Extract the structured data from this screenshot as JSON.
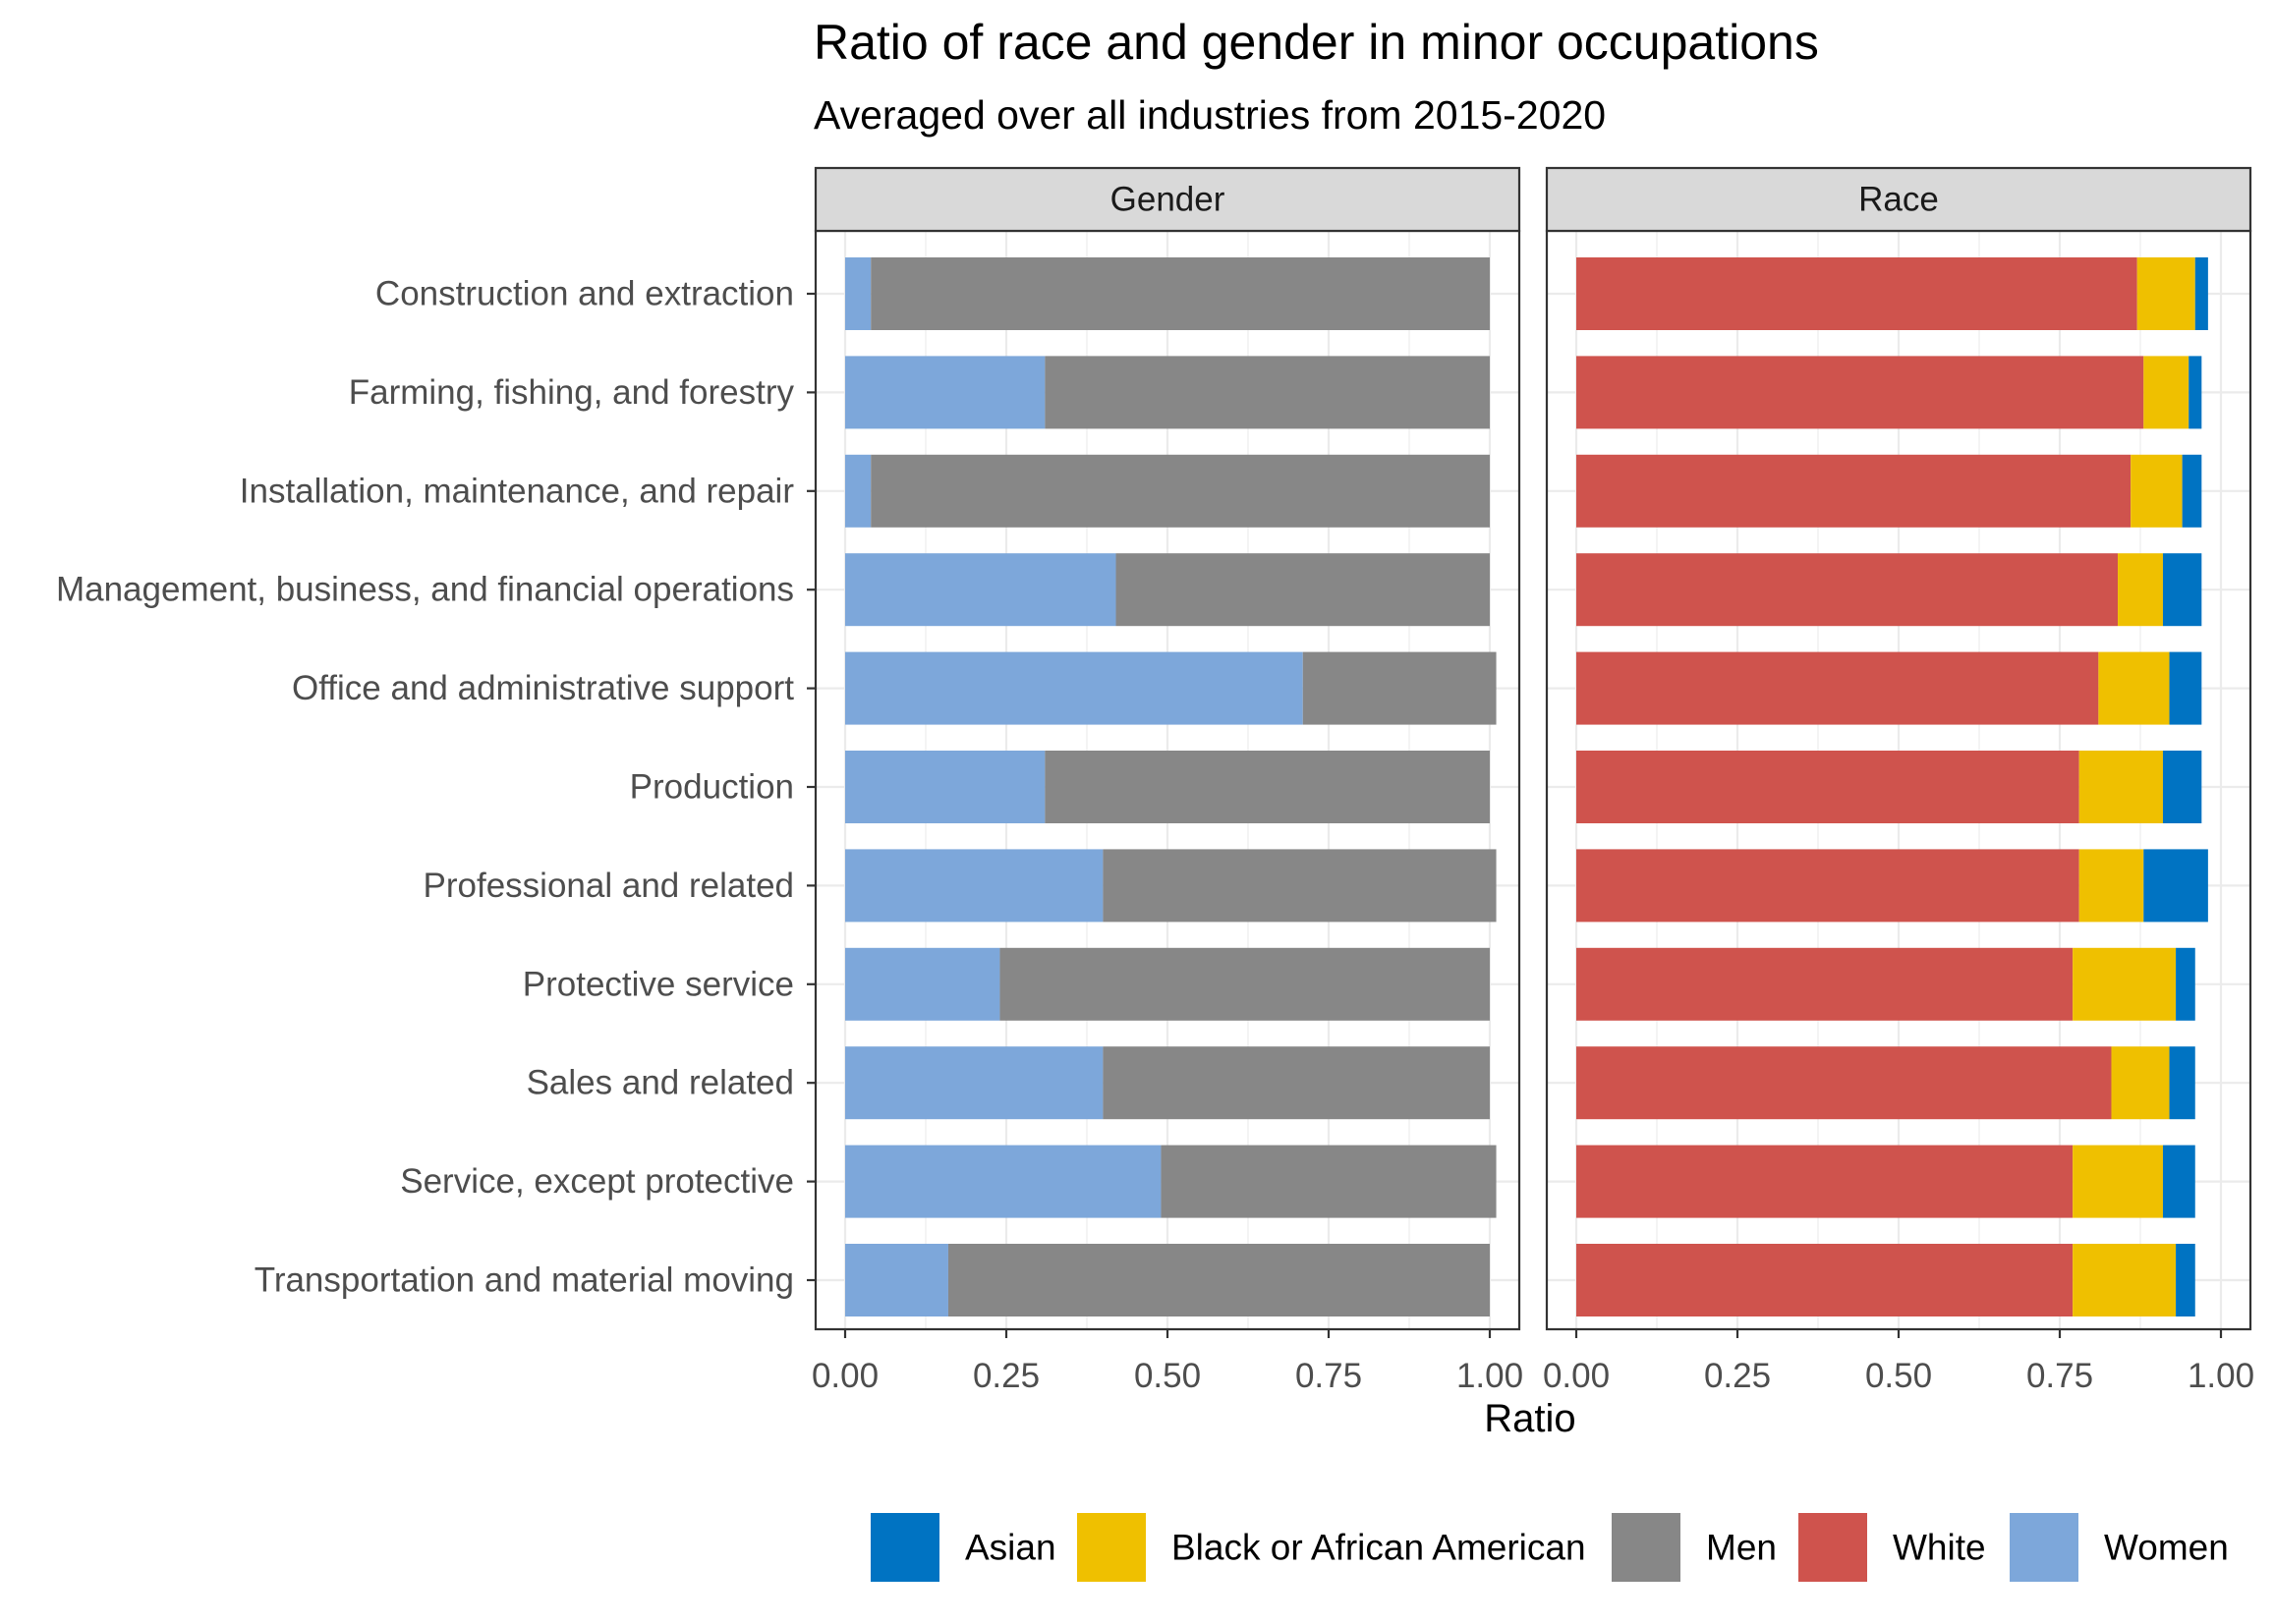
{
  "chart_data": {
    "type": "bar",
    "orientation": "horizontal",
    "stacked": true,
    "title": "Ratio of race and gender in minor occupations",
    "subtitle": "Averaged over all industries from 2015-2020",
    "xlabel": "Ratio",
    "ylabel": "",
    "xlim": [
      0,
      1
    ],
    "x_ticks": [
      "0.00",
      "0.25",
      "0.50",
      "0.75",
      "1.00"
    ],
    "grid": true,
    "legend_position": "bottom",
    "categories": [
      "Construction and extraction",
      "Farming, fishing, and forestry",
      "Installation, maintenance, and repair",
      "Management, business, and financial operations",
      "Office and administrative support",
      "Production",
      "Professional and related",
      "Protective service",
      "Sales and related",
      "Service, except protective",
      "Transportation and material moving"
    ],
    "panels": [
      {
        "label": "Gender",
        "series": [
          {
            "name": "Women",
            "color": "#7da7da",
            "values": [
              0.04,
              0.31,
              0.04,
              0.42,
              0.71,
              0.31,
              0.4,
              0.24,
              0.4,
              0.49,
              0.16
            ]
          },
          {
            "name": "Men",
            "color": "#878787",
            "values": [
              0.96,
              0.69,
              0.96,
              0.58,
              0.3,
              0.69,
              0.61,
              0.76,
              0.6,
              0.52,
              0.84
            ]
          }
        ]
      },
      {
        "label": "Race",
        "series": [
          {
            "name": "White",
            "color": "#cf534d",
            "values": [
              0.87,
              0.88,
              0.86,
              0.84,
              0.81,
              0.78,
              0.78,
              0.77,
              0.83,
              0.77,
              0.77
            ]
          },
          {
            "name": "Black or African American",
            "color": "#efc000",
            "values": [
              0.09,
              0.07,
              0.08,
              0.07,
              0.11,
              0.13,
              0.1,
              0.16,
              0.09,
              0.14,
              0.16
            ]
          },
          {
            "name": "Asian",
            "color": "#0073c2",
            "values": [
              0.02,
              0.02,
              0.03,
              0.06,
              0.05,
              0.06,
              0.1,
              0.03,
              0.04,
              0.05,
              0.03
            ]
          }
        ]
      }
    ],
    "legend": [
      {
        "name": "Asian",
        "color": "#0073c2"
      },
      {
        "name": "Black or African American",
        "color": "#efc000"
      },
      {
        "name": "Men",
        "color": "#878787"
      },
      {
        "name": "White",
        "color": "#cf534d"
      },
      {
        "name": "Women",
        "color": "#7da7da"
      }
    ]
  }
}
